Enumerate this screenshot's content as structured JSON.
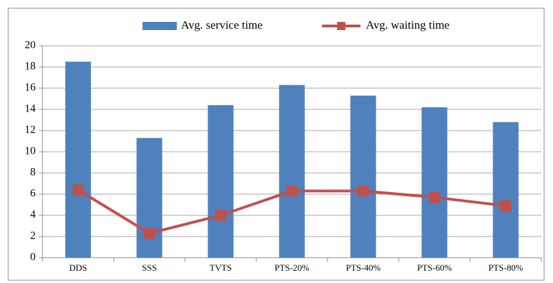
{
  "chart_data": {
    "type": "combo",
    "categories": [
      "DDS",
      "SSS",
      "TVTS",
      "PTS-20%",
      "PTS-40%",
      "PTS-60%",
      "PTS-80%"
    ],
    "series": [
      {
        "name": "Avg. service time",
        "type": "bar",
        "color": "#4f81bd",
        "values": [
          18.5,
          11.3,
          14.4,
          16.3,
          15.3,
          14.2,
          12.8
        ]
      },
      {
        "name": "Avg. waiting time",
        "type": "line",
        "color": "#c0504d",
        "values": [
          6.4,
          2.3,
          4.0,
          6.3,
          6.3,
          5.7,
          4.9
        ]
      }
    ],
    "ylim": [
      0,
      20
    ],
    "yticks": [
      0,
      2,
      4,
      6,
      8,
      10,
      12,
      14,
      16,
      18,
      20
    ],
    "grid": true,
    "legend": "top"
  }
}
